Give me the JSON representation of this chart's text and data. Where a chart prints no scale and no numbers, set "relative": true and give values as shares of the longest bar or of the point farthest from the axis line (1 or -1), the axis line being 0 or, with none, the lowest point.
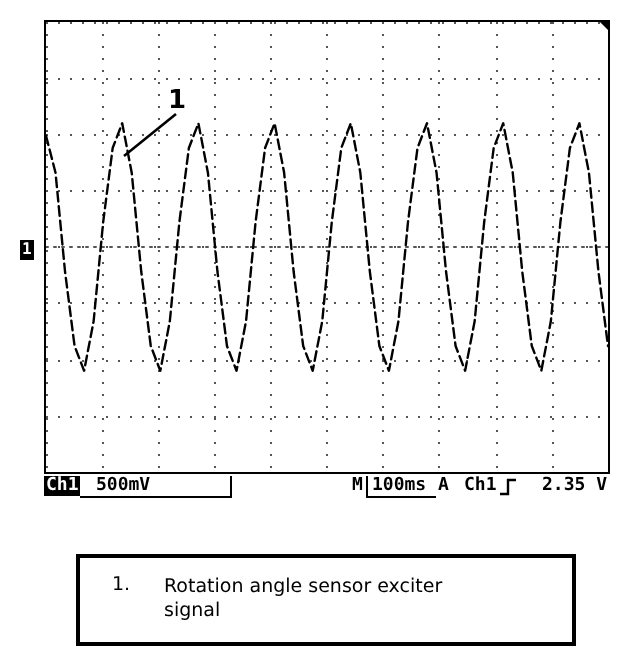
{
  "chart_data": {
    "type": "line",
    "relative": true,
    "grid": true,
    "line_style": "dashed",
    "categories": [
      null,
      null,
      null,
      null,
      null,
      null,
      null,
      null,
      null,
      null,
      null,
      null,
      null,
      null,
      null,
      null,
      null,
      null,
      null,
      null,
      null,
      null,
      null,
      null,
      null,
      null,
      null,
      null,
      null,
      null,
      null,
      null,
      null,
      null,
      null,
      null,
      null,
      null,
      null,
      null,
      null,
      null,
      null,
      null,
      null,
      null,
      null,
      null,
      null,
      null,
      null,
      null,
      null,
      null,
      null,
      null,
      null,
      null,
      null,
      null
    ],
    "series": [
      {
        "color": "#000000",
        "values": [
          0.9,
          0.6,
          -0.2,
          -0.8,
          -1.0,
          -0.6,
          0.2,
          0.8,
          1.0,
          0.6,
          -0.2,
          -0.8,
          -1.0,
          -0.6,
          0.2,
          0.8,
          1.0,
          0.6,
          -0.2,
          -0.8,
          -1.0,
          -0.6,
          0.2,
          0.8,
          1.0,
          0.6,
          -0.2,
          -0.8,
          -1.0,
          -0.6,
          0.2,
          0.8,
          1.0,
          0.6,
          -0.2,
          -0.8,
          -1.0,
          -0.6,
          0.2,
          0.8,
          1.0,
          0.6,
          -0.2,
          -0.8,
          -1.0,
          -0.6,
          0.2,
          0.8,
          1.0,
          0.6,
          -0.2,
          -0.8,
          -1.0,
          -0.6,
          0.2,
          0.8,
          1.0,
          0.6,
          -0.2,
          -0.8
        ]
      }
    ],
    "annotations": [
      "1",
      "1",
      "Ch1",
      "500mV",
      "M",
      "100ms",
      "A",
      "Ch1",
      "2.35 V",
      "1.",
      "Rotation angle sensor exciter signal"
    ]
  }
}
